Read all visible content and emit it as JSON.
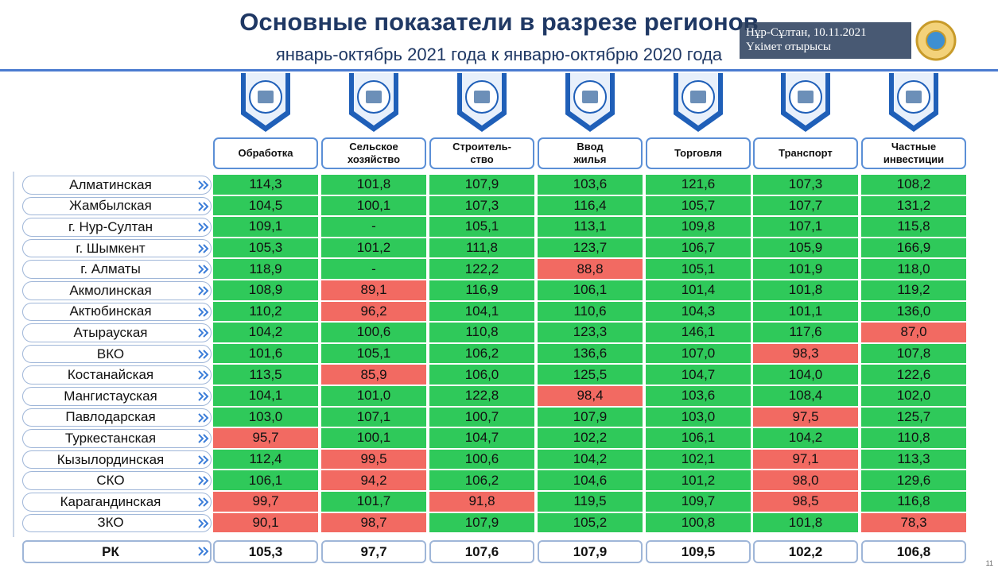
{
  "header": {
    "title": "Основные показатели в разрезе регионов",
    "subtitle": "январь-октябрь 2021 года к январю-октябрю 2020 года"
  },
  "overlay": {
    "place_date": "Нұр-Сұлтан, 10.11.2021",
    "event": "Үкімет отырысы"
  },
  "table": {
    "columns": [
      "Обработка",
      "Сельское\nхозяйство",
      "Строитель-\nство",
      "Ввод\nжилья",
      "Торговля",
      "Транспорт",
      "Частные\nинвестиции"
    ],
    "rows": [
      {
        "region": "Алматинская",
        "values": [
          "114,3",
          "101,8",
          "107,9",
          "103,6",
          "121,6",
          "107,3",
          "108,2"
        ]
      },
      {
        "region": "Жамбылская",
        "values": [
          "104,5",
          "100,1",
          "107,3",
          "116,4",
          "105,7",
          "107,7",
          "131,2"
        ]
      },
      {
        "region": "г. Нур-Султан",
        "values": [
          "109,1",
          "-",
          "105,1",
          "113,1",
          "109,8",
          "107,1",
          "115,8"
        ]
      },
      {
        "region": "г. Шымкент",
        "values": [
          "105,3",
          "101,2",
          "111,8",
          "123,7",
          "106,7",
          "105,9",
          "166,9"
        ]
      },
      {
        "region": "г. Алматы",
        "values": [
          "118,9",
          "-",
          "122,2",
          "88,8",
          "105,1",
          "101,9",
          "118,0"
        ]
      },
      {
        "region": "Акмолинская",
        "values": [
          "108,9",
          "89,1",
          "116,9",
          "106,1",
          "101,4",
          "101,8",
          "119,2"
        ]
      },
      {
        "region": "Актюбинская",
        "values": [
          "110,2",
          "96,2",
          "104,1",
          "110,6",
          "104,3",
          "101,1",
          "136,0"
        ]
      },
      {
        "region": "Атырауская",
        "values": [
          "104,2",
          "100,6",
          "110,8",
          "123,3",
          "146,1",
          "117,6",
          "87,0"
        ]
      },
      {
        "region": "ВКО",
        "values": [
          "101,6",
          "105,1",
          "106,2",
          "136,6",
          "107,0",
          "98,3",
          "107,8"
        ]
      },
      {
        "region": "Костанайская",
        "values": [
          "113,5",
          "85,9",
          "106,0",
          "125,5",
          "104,7",
          "104,0",
          "122,6"
        ]
      },
      {
        "region": "Мангистауская",
        "values": [
          "104,1",
          "101,0",
          "122,8",
          "98,4",
          "103,6",
          "108,4",
          "102,0"
        ]
      },
      {
        "region": "Павлодарская",
        "values": [
          "103,0",
          "107,1",
          "100,7",
          "107,9",
          "103,0",
          "97,5",
          "125,7"
        ]
      },
      {
        "region": "Туркестанская",
        "values": [
          "95,7",
          "100,1",
          "104,7",
          "102,2",
          "106,1",
          "104,2",
          "110,8"
        ]
      },
      {
        "region": "Кызылординская",
        "values": [
          "112,4",
          "99,5",
          "100,6",
          "104,2",
          "102,1",
          "97,1",
          "113,3"
        ]
      },
      {
        "region": "СКО",
        "values": [
          "106,1",
          "94,2",
          "106,2",
          "104,6",
          "101,2",
          "98,0",
          "129,6"
        ]
      },
      {
        "region": "Карагандинская",
        "values": [
          "99,7",
          "101,7",
          "91,8",
          "119,5",
          "109,7",
          "98,5",
          "116,8"
        ]
      },
      {
        "region": "ЗКО",
        "values": [
          "90,1",
          "98,7",
          "107,9",
          "105,2",
          "100,8",
          "101,8",
          "78,3"
        ]
      }
    ],
    "total": {
      "region": "РК",
      "values": [
        "105,3",
        "97,7",
        "107,6",
        "107,9",
        "109,5",
        "102,2",
        "106,8"
      ]
    }
  },
  "page_number": "11"
}
